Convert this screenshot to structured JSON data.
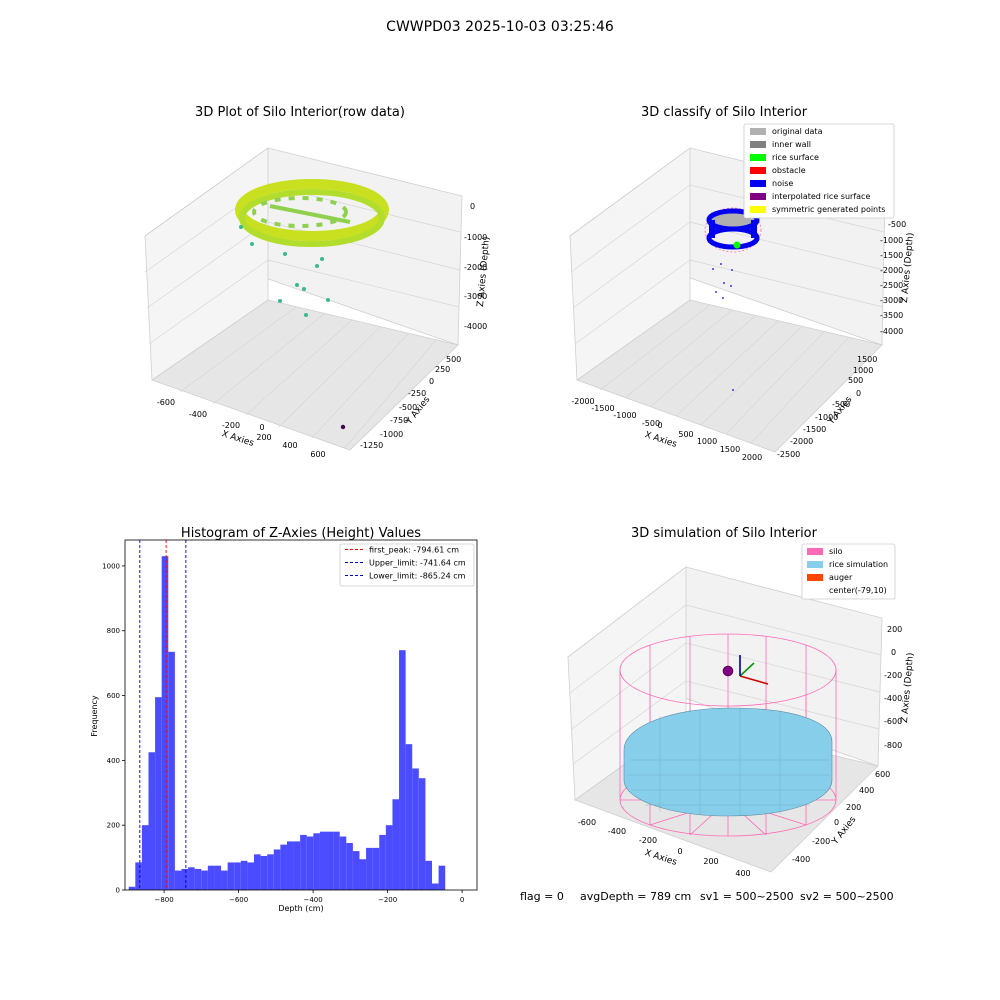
{
  "figure": {
    "title": "CWWPD03 2025-10-03 03:25:46",
    "footer": {
      "flag": "flag = 0",
      "avg_depth": "avgDepth = 789 cm",
      "sv1": "sv1 = 500~2500",
      "sv2": "sv2 = 500~2500"
    }
  },
  "chart_data": [
    {
      "type": "scatter3d",
      "title": "3D Plot of Silo Interior(row data)",
      "xlabel": "X Axies",
      "ylabel": "Y Axies",
      "zlabel": "Z Axies (Depth)",
      "x_ticks": [
        "-600",
        "-400",
        "-200",
        "0",
        "200",
        "400",
        "600"
      ],
      "y_ticks": [
        "-1250",
        "-1000",
        "-750",
        "-500",
        "-250",
        "0",
        "250",
        "500"
      ],
      "z_ticks": [
        "0",
        "-1000",
        "-2000",
        "-3000",
        "-4000"
      ],
      "colormap": "viridis",
      "colors": {
        "ring_main": "#c8e020",
        "ring_alt": "#8fd14f",
        "sparse": "#3cb88a",
        "outlier": "#440154"
      }
    },
    {
      "type": "scatter3d",
      "title": "3D classify of Silo Interior",
      "xlabel": "X Axies",
      "ylabel": "Y Axies",
      "zlabel": "Z Axies (Depth)",
      "x_ticks": [
        "-2000",
        "-1500",
        "-1000",
        "-500",
        "0",
        "500",
        "1000",
        "1500",
        "2000"
      ],
      "y_ticks": [
        "-2500",
        "-2000",
        "-1500",
        "-1000",
        "-500",
        "0",
        "500",
        "1000",
        "1500"
      ],
      "z_ticks": [
        "-500",
        "-1000",
        "-1500",
        "-2000",
        "-2500",
        "-3000",
        "-3500",
        "-4000"
      ],
      "legend_position": "top-right",
      "legend": [
        {
          "label": "original data",
          "color": "#b0b0b0"
        },
        {
          "label": "inner wall",
          "color": "#808080"
        },
        {
          "label": "rice surface",
          "color": "#00ff00"
        },
        {
          "label": "obstacle",
          "color": "#ff0000"
        },
        {
          "label": "noise",
          "color": "#0000ee"
        },
        {
          "label": "interpolated rice surface",
          "color": "#800080"
        },
        {
          "label": "symmetric generated points",
          "color": "#ffff00"
        }
      ]
    },
    {
      "type": "histogram",
      "title": "Histogram of Z-Axies (Height) Values",
      "xlabel": "Depth (cm)",
      "ylabel": "Frequency",
      "xlim": [
        -905,
        40
      ],
      "ylim": [
        0,
        1080
      ],
      "x_ticks": [
        -800,
        -600,
        -400,
        -200,
        0
      ],
      "y_ticks": [
        0,
        200,
        400,
        600,
        800,
        1000
      ],
      "bar_color": "#4b4bff",
      "bin_start": -895,
      "bin_width": 17.7,
      "counts": [
        10,
        85,
        200,
        425,
        595,
        1030,
        735,
        60,
        65,
        70,
        65,
        60,
        75,
        75,
        60,
        85,
        85,
        90,
        85,
        110,
        105,
        110,
        125,
        140,
        150,
        150,
        170,
        165,
        175,
        180,
        180,
        180,
        165,
        145,
        120,
        95,
        130,
        130,
        170,
        200,
        280,
        740,
        450,
        375,
        345,
        90,
        20,
        75
      ],
      "lines": [
        {
          "name": "first_peak",
          "label": "first_peak: -794.61 cm",
          "x": -794.61,
          "color": "#ff0000"
        },
        {
          "name": "upper_limit",
          "label": "Upper_limit: -741.64 cm",
          "x": -741.64,
          "color": "#0000cc"
        },
        {
          "name": "lower_limit",
          "label": "Lower_limit: -865.24 cm",
          "x": -865.24,
          "color": "#0000cc"
        }
      ],
      "legend_position": "top-right"
    },
    {
      "type": "surface3d",
      "title": "3D simulation of Silo Interior",
      "xlabel": "X Axies",
      "ylabel": "Y Axies",
      "zlabel": "Z Axies (Depth)",
      "x_ticks": [
        "-600",
        "-400",
        "-200",
        "0",
        "200",
        "400"
      ],
      "y_ticks": [
        "-400",
        "-200",
        "0",
        "200",
        "400",
        "600"
      ],
      "z_ticks": [
        "200",
        "0",
        "-200",
        "-400",
        "-600",
        "-800"
      ],
      "legend_position": "top-right",
      "legend": [
        {
          "label": "silo",
          "color": "#ff69b4"
        },
        {
          "label": "rice simulation",
          "color": "#87ceeb"
        },
        {
          "label": "auger",
          "color": "#ff4500"
        },
        {
          "label": "center(-79,10)",
          "color": ""
        }
      ]
    }
  ]
}
